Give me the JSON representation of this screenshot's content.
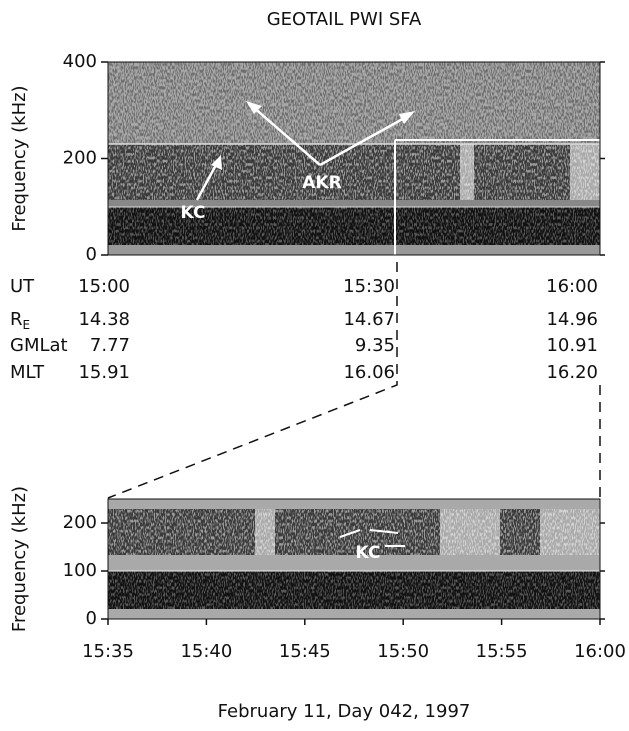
{
  "title": "GEOTAIL  PWI  SFA",
  "ephemeris": {
    "rows": [
      {
        "label": "UT",
        "values": [
          "15:00",
          "15:30",
          "16:00"
        ]
      },
      {
        "label": "R",
        "sub": "E",
        "values": [
          "14.38",
          "14.67",
          "14.96"
        ]
      },
      {
        "label": "GMLat",
        "values": [
          "7.77",
          "9.35",
          "10.91"
        ]
      },
      {
        "label": "MLT",
        "values": [
          "15.91",
          "16.06",
          "16.20"
        ]
      }
    ]
  },
  "footer": "February 11,  Day 042, 1997",
  "chart_data": [
    {
      "type": "spectrogram",
      "ylabel": "Frequency (kHz)",
      "ylim": [
        0,
        400
      ],
      "yticks": [
        0,
        200,
        400
      ],
      "annotations": [
        "AKR",
        "KC"
      ]
    },
    {
      "type": "spectrogram",
      "ylabel": "Frequency (kHz)",
      "ylim": [
        0,
        250
      ],
      "yticks": [
        0,
        100,
        200
      ],
      "categories": [
        "15:35",
        "15:40",
        "15:45",
        "15:50",
        "15:55",
        "16:00"
      ],
      "annotations": [
        "KC"
      ]
    }
  ]
}
